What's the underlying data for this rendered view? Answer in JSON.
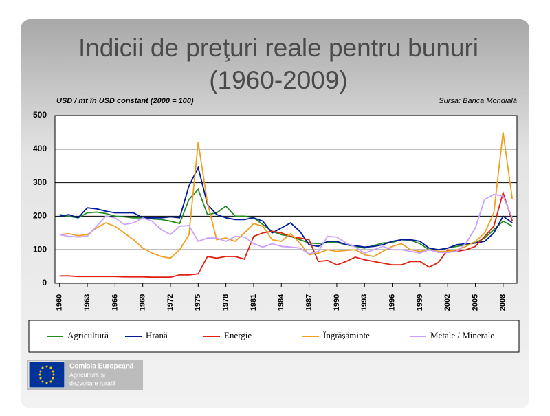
{
  "chart_data": {
    "type": "line",
    "title": [
      "Indicii de preţuri reale pentru bunuri",
      "(1960-2009)"
    ],
    "y_label": "USD / mt în USD constant (2000 = 100)",
    "source": "Sursa: Banca Mondială",
    "x": [
      1960,
      1961,
      1962,
      1963,
      1964,
      1965,
      1966,
      1967,
      1968,
      1969,
      1970,
      1971,
      1972,
      1973,
      1974,
      1975,
      1976,
      1977,
      1978,
      1979,
      1980,
      1981,
      1982,
      1983,
      1984,
      1985,
      1986,
      1987,
      1988,
      1989,
      1990,
      1991,
      1992,
      1993,
      1994,
      1995,
      1996,
      1997,
      1998,
      1999,
      2000,
      2001,
      2002,
      2003,
      2004,
      2005,
      2006,
      2007,
      2008,
      2009
    ],
    "xlim": [
      1959.5,
      2009.5
    ],
    "xticks": [
      1960,
      1963,
      1966,
      1969,
      1972,
      1975,
      1978,
      1981,
      1984,
      1987,
      1990,
      1993,
      1996,
      1999,
      2002,
      2005,
      2008
    ],
    "ylim": [
      0,
      500
    ],
    "yticks": [
      0,
      100,
      200,
      300,
      400,
      500
    ],
    "grid": true,
    "legend": "bottom",
    "series": [
      {
        "name": "Agricultură",
        "color": "#228b22",
        "values": [
          205,
          200,
          195,
          210,
          212,
          208,
          200,
          198,
          195,
          195,
          192,
          190,
          185,
          178,
          250,
          280,
          205,
          210,
          230,
          200,
          200,
          195,
          175,
          155,
          145,
          140,
          130,
          120,
          118,
          122,
          122,
          115,
          110,
          105,
          112,
          120,
          122,
          130,
          128,
          118,
          100,
          100,
          105,
          110,
          115,
          120,
          135,
          160,
          185,
          170
        ]
      },
      {
        "name": "Hrană",
        "color": "#001a99",
        "values": [
          200,
          205,
          195,
          225,
          222,
          215,
          210,
          210,
          210,
          195,
          195,
          195,
          198,
          195,
          290,
          345,
          235,
          205,
          195,
          190,
          190,
          195,
          185,
          150,
          165,
          180,
          155,
          115,
          110,
          125,
          125,
          115,
          112,
          108,
          110,
          115,
          125,
          130,
          130,
          125,
          105,
          100,
          105,
          115,
          118,
          120,
          125,
          150,
          200,
          180
        ]
      },
      {
        "name": "Energie",
        "color": "#e02010",
        "values": [
          22,
          22,
          20,
          20,
          20,
          20,
          20,
          19,
          19,
          19,
          18,
          18,
          18,
          25,
          25,
          28,
          80,
          75,
          80,
          80,
          72,
          140,
          150,
          155,
          150,
          140,
          135,
          130,
          65,
          68,
          55,
          65,
          78,
          70,
          65,
          60,
          55,
          55,
          65,
          65,
          48,
          62,
          100,
          95,
          100,
          110,
          140,
          170,
          270,
          185
        ]
      },
      {
        "name": "Îngrăşăminte",
        "color": "#f0a020",
        "values": [
          145,
          148,
          142,
          145,
          165,
          180,
          170,
          150,
          130,
          105,
          90,
          80,
          75,
          100,
          145,
          420,
          240,
          130,
          135,
          125,
          150,
          178,
          170,
          130,
          125,
          148,
          120,
          85,
          90,
          100,
          95,
          98,
          100,
          85,
          80,
          95,
          110,
          118,
          100,
          95,
          100,
          95,
          95,
          100,
          110,
          125,
          150,
          210,
          450,
          250
        ]
      },
      {
        "name": "Metale / Minerale",
        "color": "#c9a0ff",
        "values": [
          145,
          140,
          138,
          140,
          170,
          200,
          195,
          175,
          180,
          195,
          185,
          160,
          145,
          170,
          172,
          125,
          135,
          135,
          125,
          140,
          138,
          118,
          108,
          118,
          110,
          108,
          105,
          88,
          95,
          140,
          138,
          120,
          108,
          90,
          100,
          110,
          100,
          100,
          95,
          90,
          100,
          92,
          92,
          95,
          120,
          165,
          250,
          265,
          260,
          195
        ]
      }
    ]
  },
  "footer": {
    "organization": "Comisia Europeană",
    "department": [
      "Agricultură şi",
      "dezvoltare rurală"
    ]
  }
}
